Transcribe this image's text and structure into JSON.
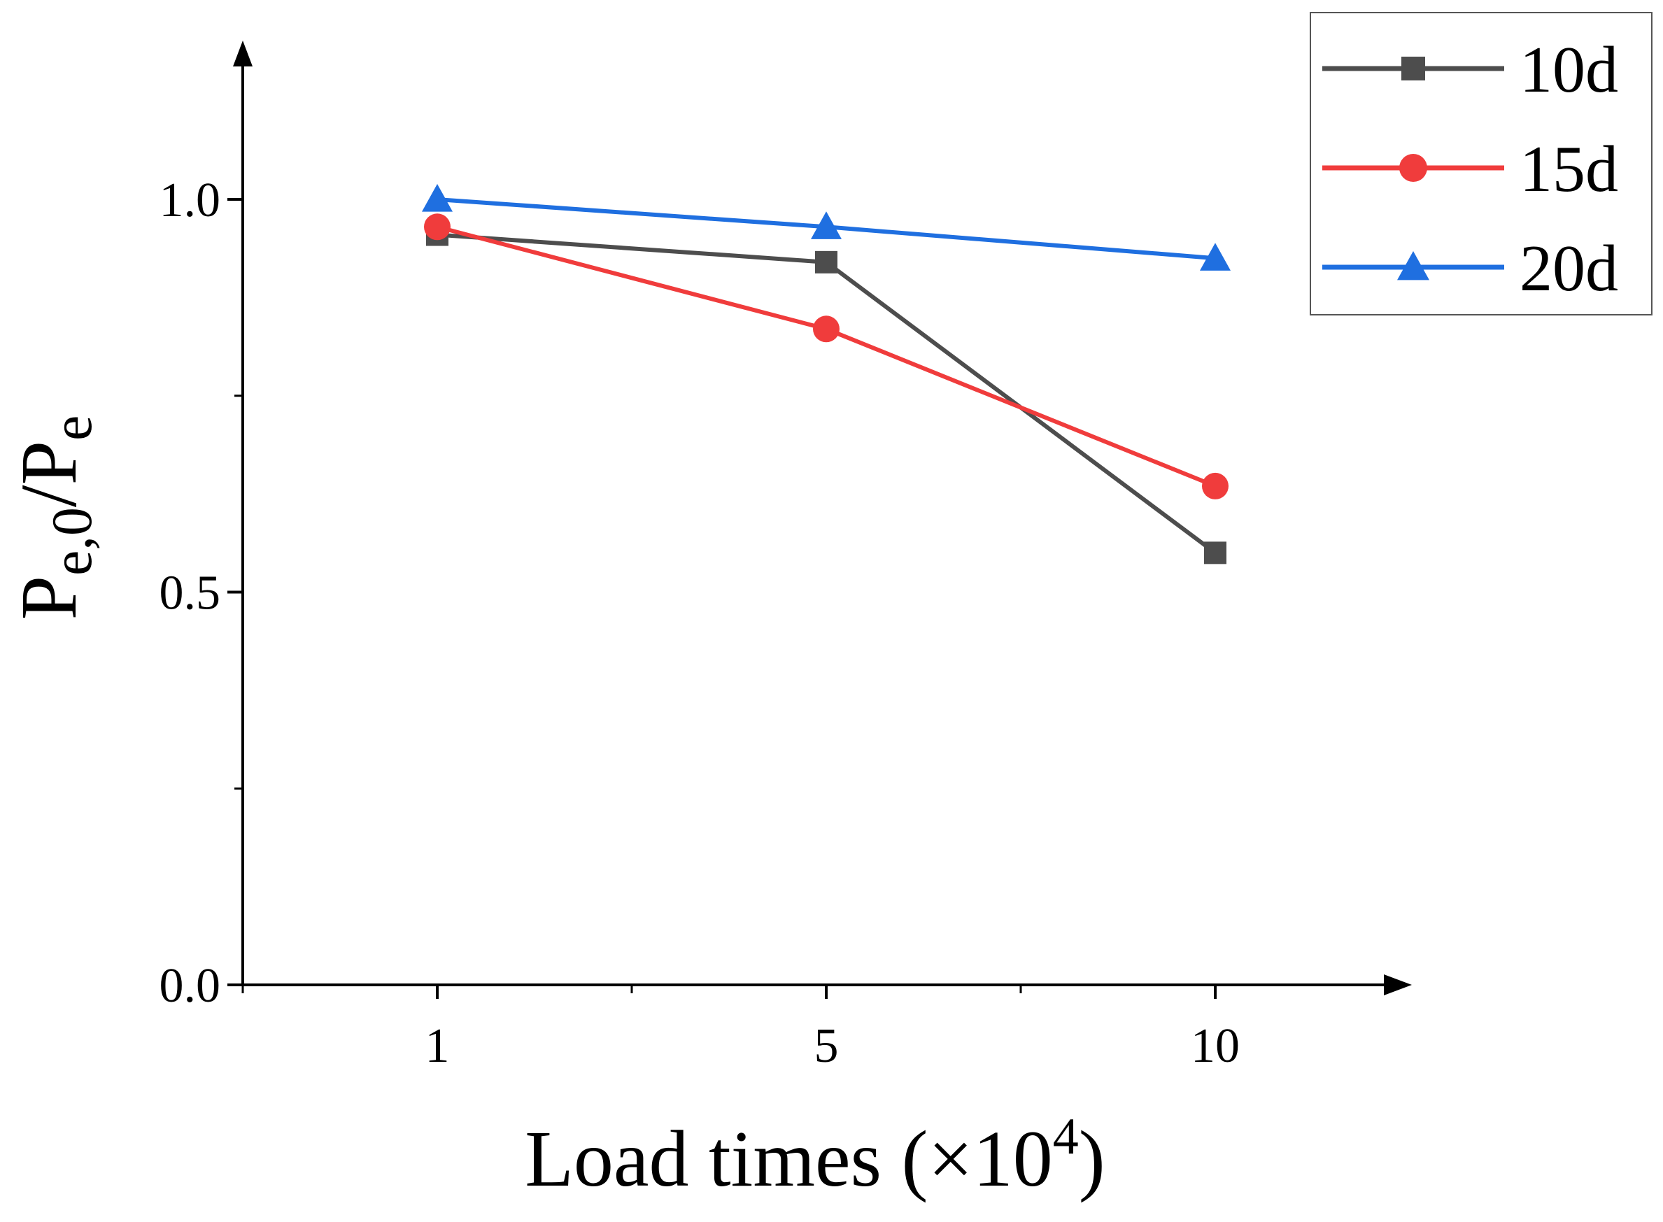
{
  "chart_data": {
    "type": "line",
    "title": "",
    "categories": [
      "1",
      "5",
      "10"
    ],
    "x_unit_label": "×10",
    "xlabel": {
      "main": "Load times (",
      "mult": "×10",
      "sup": "4",
      "close": ")"
    },
    "ylabel": {
      "p1": "P",
      "sub1": "e,0",
      "slash": "/P",
      "sub2": "e"
    },
    "ylim": [
      0,
      1.2
    ],
    "yticks": [
      {
        "value": 0.0,
        "label": "0.0"
      },
      {
        "value": 0.5,
        "label": "0.5"
      },
      {
        "value": 1.0,
        "label": "1.0"
      }
    ],
    "yminor_ticks": [
      0.25,
      0.75
    ],
    "xminor_positions": [
      0.5,
      1.5,
      2.5
    ],
    "grid": false,
    "legend_position": "top-right",
    "series": [
      {
        "name": "10d",
        "values": [
          0.955,
          0.92,
          0.55
        ],
        "color": "#4d4d4d",
        "marker": "square"
      },
      {
        "name": "15d",
        "values": [
          0.965,
          0.835,
          0.635
        ],
        "color": "#f03c3c",
        "marker": "circle"
      },
      {
        "name": "20d",
        "values": [
          1.0,
          0.965,
          0.925
        ],
        "color": "#1f6fe0",
        "marker": "triangle"
      }
    ]
  }
}
